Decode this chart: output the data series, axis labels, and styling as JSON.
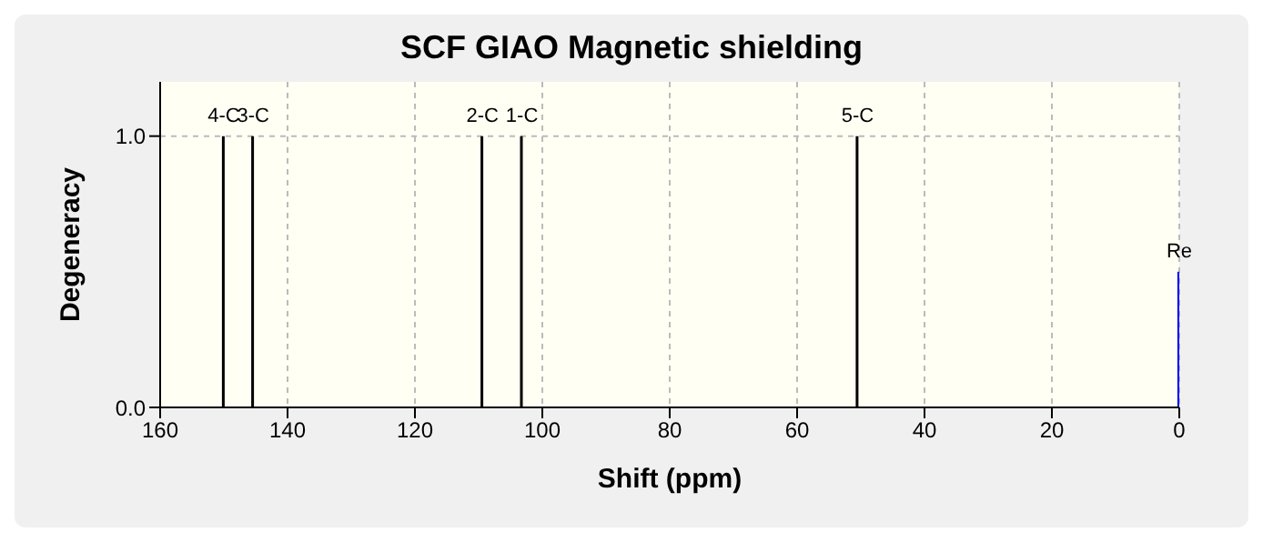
{
  "chart_data": {
    "type": "bar",
    "title": "SCF GIAO Magnetic shielding",
    "xlabel": "Shift (ppm)",
    "ylabel": "Degeneracy",
    "x": [
      150,
      145.4,
      109.4,
      103.2,
      50.5,
      0
    ],
    "values": [
      1,
      1,
      1,
      1,
      1,
      0.5
    ],
    "colors": [
      "#000000",
      "#000000",
      "#000000",
      "#000000",
      "#000000",
      "#0000ff"
    ],
    "annotations": [
      {
        "text": "4-C",
        "x": 150,
        "y": 1
      },
      {
        "text": "3-C",
        "x": 145.4,
        "y": 1
      },
      {
        "text": "2-C",
        "x": 109.4,
        "y": 1
      },
      {
        "text": "1-C",
        "x": 103.2,
        "y": 1
      },
      {
        "text": "5-C",
        "x": 50.5,
        "y": 1
      },
      {
        "text": "Re",
        "x": 0,
        "y": 0.5
      }
    ],
    "xlim": [
      160,
      0
    ],
    "xticks": [
      160,
      140,
      120,
      100,
      80,
      60,
      40,
      20,
      0
    ],
    "ylim": [
      0,
      1.2
    ],
    "yticks": [
      {
        "value": 0,
        "label": "0.0"
      },
      {
        "value": 1,
        "label": "1.0"
      }
    ],
    "grid": true,
    "legend": false
  }
}
